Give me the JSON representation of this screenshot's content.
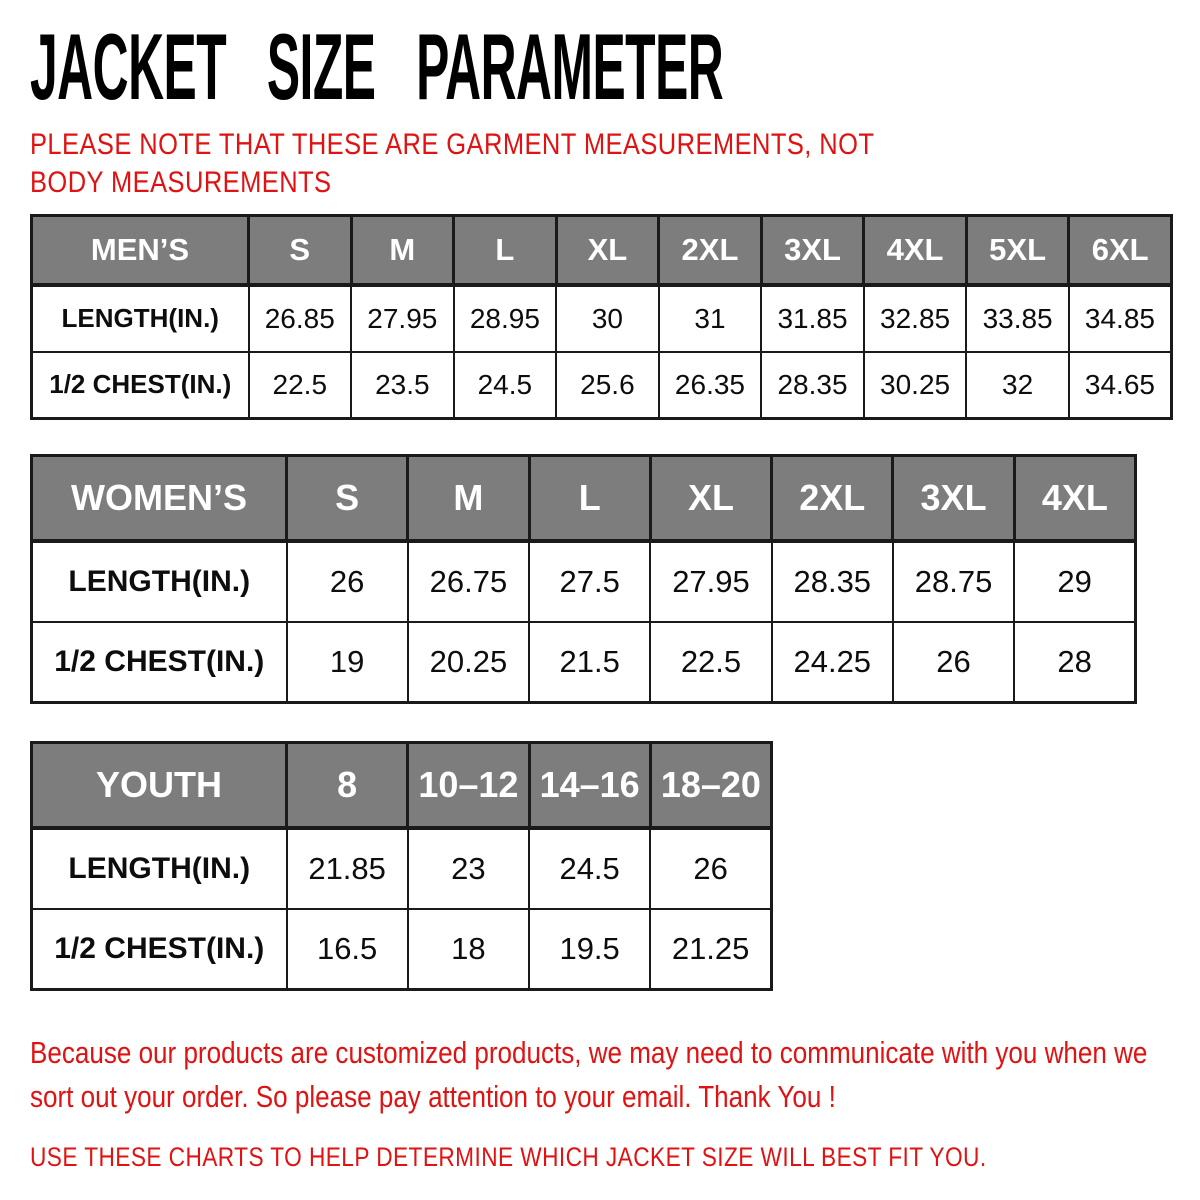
{
  "header": {
    "title": "JACKET SIZE PARAMETER",
    "note": "PLEASE NOTE THAT THESE ARE GARMENT MEASUREMENTS, NOT BODY MEASUREMENTS"
  },
  "tables": [
    {
      "name": "mens",
      "label": "MEN’S",
      "sizes": [
        "S",
        "M",
        "L",
        "XL",
        "2XL",
        "3XL",
        "4XL",
        "5XL",
        "6XL"
      ],
      "rows": [
        {
          "label": "LENGTH(IN.)",
          "values": [
            "26.85",
            "27.95",
            "28.95",
            "30",
            "31",
            "31.85",
            "32.85",
            "33.85",
            "34.85"
          ]
        },
        {
          "label": "1/2 CHEST(IN.)",
          "values": [
            "22.5",
            "23.5",
            "24.5",
            "25.6",
            "26.35",
            "28.35",
            "30.25",
            "32",
            "34.65"
          ]
        }
      ]
    },
    {
      "name": "womens",
      "label": "WOMEN’S",
      "sizes": [
        "S",
        "M",
        "L",
        "XL",
        "2XL",
        "3XL",
        "4XL"
      ],
      "rows": [
        {
          "label": "LENGTH(IN.)",
          "values": [
            "26",
            "26.75",
            "27.5",
            "27.95",
            "28.35",
            "28.75",
            "29"
          ]
        },
        {
          "label": "1/2 CHEST(IN.)",
          "values": [
            "19",
            "20.25",
            "21.5",
            "22.5",
            "24.25",
            "26",
            "28"
          ]
        }
      ]
    },
    {
      "name": "youth",
      "label": "YOUTH",
      "sizes": [
        "8",
        "10–12",
        "14–16",
        "18–20"
      ],
      "rows": [
        {
          "label": "LENGTH(IN.)",
          "values": [
            "21.85",
            "23",
            "24.5",
            "26"
          ]
        },
        {
          "label": "1/2 CHEST(IN.)",
          "values": [
            "16.5",
            "18",
            "19.5",
            "21.25"
          ]
        }
      ]
    }
  ],
  "footer": {
    "paragraph": "Because our products are customized products, we may need to communicate with you when we sort out your order. So please pay attention to your email. Thank You !",
    "caps_line": "USE THESE CHARTS TO HELP DETERMINE WHICH JACKET SIZE WILL BEST FIT YOU."
  },
  "colors": {
    "accent_red": "#e01212",
    "table_header_bg": "#7d7d7d",
    "table_header_text": "#ffffff",
    "table_border": "#1a1a1a",
    "title_text": "#000000"
  }
}
